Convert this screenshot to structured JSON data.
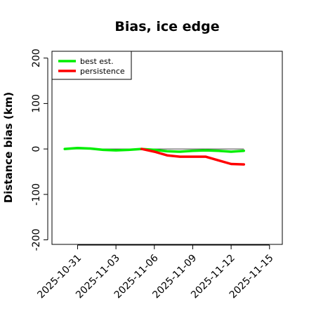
{
  "chart_data": {
    "type": "line",
    "title": "Bias, ice edge",
    "ylabel": "Distance bias (km)",
    "xlabel": "",
    "ylim": [
      -210,
      215
    ],
    "yticks": [
      -200,
      -100,
      0,
      100,
      200
    ],
    "xlim": [
      "2025-10-29",
      "2025-11-16"
    ],
    "xticks": [
      "2025-10-31",
      "2025-11-03",
      "2025-11-06",
      "2025-11-09",
      "2025-11-12",
      "2025-11-15"
    ],
    "reference_line": {
      "y": 0,
      "from": "2025-10-30",
      "to": "2025-11-13"
    },
    "legend": {
      "position": "top-left",
      "entries": [
        "best est.",
        "persistence"
      ]
    },
    "series": [
      {
        "name": "best est.",
        "color": "#00ee00",
        "x": [
          "2025-10-30",
          "2025-10-31",
          "2025-11-01",
          "2025-11-02",
          "2025-11-03",
          "2025-11-04",
          "2025-11-05",
          "2025-11-06",
          "2025-11-07",
          "2025-11-08",
          "2025-11-09",
          "2025-11-10",
          "2025-11-11",
          "2025-11-12",
          "2025-11-13"
        ],
        "values": [
          0,
          2,
          1,
          -2,
          -3,
          -2,
          0,
          -2,
          -5,
          -6,
          -4,
          -3,
          -4,
          -6,
          -4
        ]
      },
      {
        "name": "persistence",
        "color": "#ff0000",
        "x": [
          "2025-11-05",
          "2025-11-06",
          "2025-11-07",
          "2025-11-08",
          "2025-11-09",
          "2025-11-10",
          "2025-11-11",
          "2025-11-12",
          "2025-11-13"
        ],
        "values": [
          0,
          -6,
          -14,
          -17,
          -17,
          -17,
          -25,
          -33,
          -34
        ]
      }
    ]
  }
}
